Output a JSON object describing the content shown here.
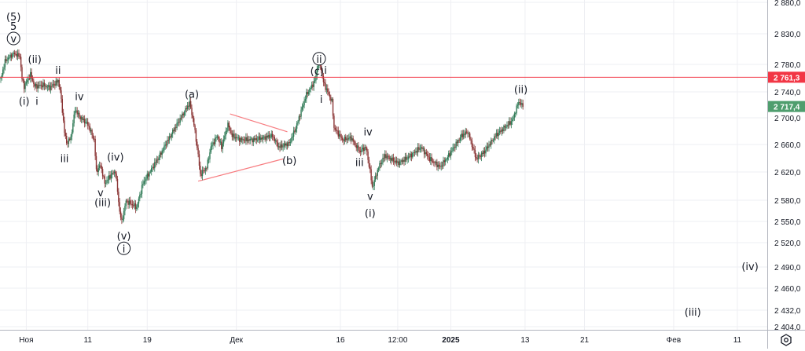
{
  "chart_data": {
    "type": "candlestick",
    "title": "",
    "y_scale": "log",
    "y_ticks": [
      2880,
      2830,
      2780,
      2740,
      2700,
      2660,
      2620,
      2580,
      2550,
      2520,
      2490,
      2460,
      2432,
      2404
    ],
    "y_tick_labels": [
      "2 880,0",
      "2 830,0",
      "2 780,0",
      "2 740,0",
      "2 700,0",
      "2 660,0",
      "2 620,0",
      "2 580,0",
      "2 550,0",
      "2 520,0",
      "2 490,0",
      "2 460,0",
      "2 432,0",
      "2 404,0"
    ],
    "x_ticks": [
      {
        "bar": 12,
        "label": "Ноя",
        "bold": false
      },
      {
        "bar": 41,
        "label": "11",
        "bold": false
      },
      {
        "bar": 69,
        "label": "19",
        "bold": false
      },
      {
        "bar": 111,
        "label": "Дек",
        "bold": false
      },
      {
        "bar": 160,
        "label": "16",
        "bold": false
      },
      {
        "bar": 187,
        "label": "12:00",
        "bold": false
      },
      {
        "bar": 212,
        "label": "2025",
        "bold": true
      },
      {
        "bar": 247,
        "label": "13",
        "bold": false
      },
      {
        "bar": 275,
        "label": "21",
        "bold": false
      },
      {
        "bar": 317,
        "label": "Фев",
        "bold": false
      },
      {
        "bar": 347,
        "label": "11",
        "bold": false
      }
    ],
    "price_pivots": [
      [
        0,
        2759
      ],
      [
        2,
        2785
      ],
      [
        6,
        2798
      ],
      [
        9,
        2793
      ],
      [
        10,
        2759
      ],
      [
        11,
        2748
      ],
      [
        14,
        2765
      ],
      [
        16,
        2748
      ],
      [
        20,
        2750
      ],
      [
        23,
        2746
      ],
      [
        27,
        2756
      ],
      [
        28,
        2742
      ],
      [
        30,
        2679
      ],
      [
        31,
        2662
      ],
      [
        33,
        2670
      ],
      [
        35,
        2713
      ],
      [
        37,
        2702
      ],
      [
        41,
        2690
      ],
      [
        44,
        2667
      ],
      [
        45,
        2621
      ],
      [
        47,
        2630
      ],
      [
        49,
        2604
      ],
      [
        52,
        2616
      ],
      [
        54,
        2621
      ],
      [
        56,
        2564
      ],
      [
        57,
        2549
      ],
      [
        59,
        2579
      ],
      [
        64,
        2570
      ],
      [
        67,
        2604
      ],
      [
        74,
        2639
      ],
      [
        81,
        2679
      ],
      [
        89,
        2723
      ],
      [
        91,
        2690
      ],
      [
        93,
        2644
      ],
      [
        94,
        2616
      ],
      [
        97,
        2627
      ],
      [
        99,
        2656
      ],
      [
        102,
        2673
      ],
      [
        104,
        2656
      ],
      [
        107,
        2690
      ],
      [
        109,
        2673
      ],
      [
        113,
        2667
      ],
      [
        119,
        2667
      ],
      [
        128,
        2673
      ],
      [
        131,
        2656
      ],
      [
        136,
        2662
      ],
      [
        139,
        2685
      ],
      [
        144,
        2736
      ],
      [
        148,
        2756
      ],
      [
        150,
        2789
      ],
      [
        152,
        2754
      ],
      [
        156,
        2725
      ],
      [
        157,
        2685
      ],
      [
        161,
        2667
      ],
      [
        165,
        2670
      ],
      [
        169,
        2650
      ],
      [
        172,
        2656
      ],
      [
        174,
        2621
      ],
      [
        175,
        2598
      ],
      [
        178,
        2627
      ],
      [
        181,
        2644
      ],
      [
        187,
        2633
      ],
      [
        191,
        2639
      ],
      [
        198,
        2656
      ],
      [
        202,
        2639
      ],
      [
        207,
        2627
      ],
      [
        211,
        2644
      ],
      [
        217,
        2673
      ],
      [
        220,
        2679
      ],
      [
        224,
        2639
      ],
      [
        228,
        2650
      ],
      [
        233,
        2673
      ],
      [
        241,
        2696
      ],
      [
        244,
        2725
      ],
      [
        246,
        2717
      ]
    ],
    "horizontal_line": {
      "price": 2761.3,
      "label": "2 761,3",
      "color": "#f23645"
    },
    "last_price": {
      "price": 2717.4,
      "label": "2 717,4",
      "color": "#4f9e6e"
    },
    "trendlines": [
      {
        "from": [
          108,
          2706
        ],
        "to": [
          135,
          2679
        ],
        "color": "#f77c80"
      },
      {
        "from": [
          93,
          2607
        ],
        "to": [
          133,
          2639
        ],
        "color": "#f77c80"
      }
    ],
    "wave_labels": [
      {
        "text": "(5)",
        "bar": 6,
        "price": 2856,
        "circled": false
      },
      {
        "text": "5",
        "bar": 6,
        "price": 2841,
        "circled": false
      },
      {
        "text": "v",
        "bar": 6,
        "price": 2821,
        "circled": true
      },
      {
        "text": "(ii)",
        "bar": 16,
        "price": 2788,
        "circled": false
      },
      {
        "text": "(i)",
        "bar": 11,
        "price": 2725,
        "circled": false
      },
      {
        "text": "i",
        "bar": 17,
        "price": 2725,
        "circled": false
      },
      {
        "text": "ii",
        "bar": 27,
        "price": 2771,
        "circled": false
      },
      {
        "text": "iv",
        "bar": 37,
        "price": 2732,
        "circled": false
      },
      {
        "text": "iii",
        "bar": 30,
        "price": 2639,
        "circled": false
      },
      {
        "text": "(iv)",
        "bar": 54,
        "price": 2641,
        "circled": false
      },
      {
        "text": "v",
        "bar": 47,
        "price": 2590,
        "circled": false
      },
      {
        "text": "(iii)",
        "bar": 48,
        "price": 2576,
        "circled": false
      },
      {
        "text": "(v)",
        "bar": 58,
        "price": 2529,
        "circled": false
      },
      {
        "text": "i",
        "bar": 58,
        "price": 2512,
        "circled": true
      },
      {
        "text": "(a)",
        "bar": 90,
        "price": 2736,
        "circled": false
      },
      {
        "text": "(b)",
        "bar": 136,
        "price": 2636,
        "circled": false
      },
      {
        "text": "ii",
        "bar": 150,
        "price": 2788,
        "circled": true
      },
      {
        "text": "(c)",
        "bar": 149,
        "price": 2770,
        "circled": false
      },
      {
        "text": "i",
        "bar": 153,
        "price": 2771,
        "circled": false
      },
      {
        "text": "i",
        "bar": 151,
        "price": 2728,
        "circled": false
      },
      {
        "text": "iv",
        "bar": 173,
        "price": 2678,
        "circled": false
      },
      {
        "text": "iii",
        "bar": 169,
        "price": 2633,
        "circled": false
      },
      {
        "text": "v",
        "bar": 174,
        "price": 2585,
        "circled": false
      },
      {
        "text": "(i)",
        "bar": 174,
        "price": 2561,
        "circled": false
      },
      {
        "text": "(ii)",
        "bar": 245,
        "price": 2743,
        "circled": false
      },
      {
        "text": "(iv)",
        "bar": 353,
        "price": 2490,
        "circled": false
      },
      {
        "text": "(iii)",
        "bar": 326,
        "price": 2428,
        "circled": false
      }
    ],
    "colors": {
      "up": "#2f7a56",
      "down": "#8a3434",
      "grid": "#eeeff3"
    }
  }
}
